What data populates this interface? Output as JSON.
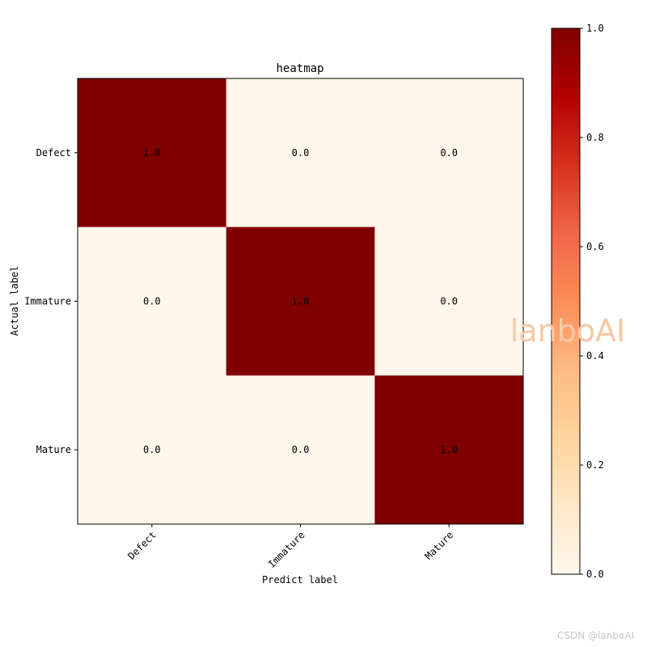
{
  "chart_data": {
    "type": "heatmap",
    "title": "heatmap",
    "xlabel": "Predict label",
    "ylabel": "Actual label",
    "x_categories": [
      "Defect",
      "Immature",
      "Mature"
    ],
    "y_categories": [
      "Defect",
      "Immature",
      "Mature"
    ],
    "values": [
      [
        1.0,
        0.0,
        0.0
      ],
      [
        0.0,
        1.0,
        0.0
      ],
      [
        0.0,
        0.0,
        1.0
      ]
    ],
    "cell_labels": [
      [
        "1.0",
        "0.0",
        "0.0"
      ],
      [
        "0.0",
        "1.0",
        "0.0"
      ],
      [
        "0.0",
        "0.0",
        "1.0"
      ]
    ],
    "colormap": "OrRd",
    "colors": {
      "low": "#fff7ec",
      "high": "#7f0000"
    },
    "colorbar": {
      "range": [
        0.0,
        1.0
      ],
      "ticks": [
        0.0,
        0.2,
        0.4,
        0.6,
        0.8,
        1.0
      ],
      "tick_labels": [
        "0.0",
        "0.2",
        "0.4",
        "0.6",
        "0.8",
        "1.0"
      ]
    },
    "grid": false
  },
  "watermark": {
    "text": "lanboAI"
  },
  "credit": {
    "text": "CSDN @lanboAI"
  }
}
